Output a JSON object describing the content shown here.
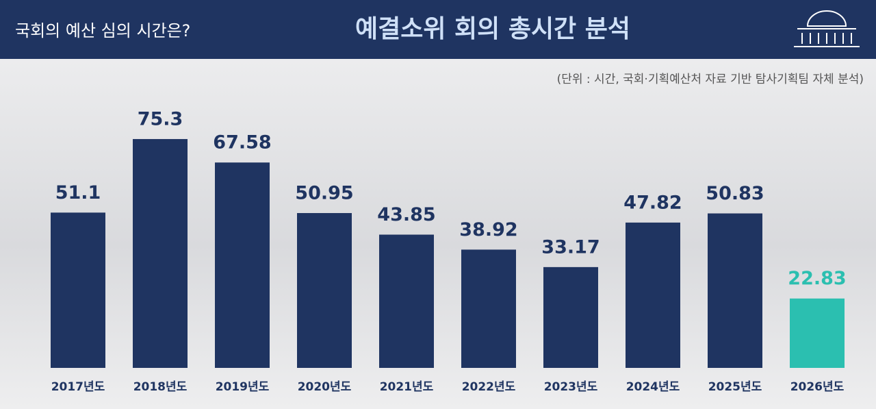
{
  "chart_data": {
    "type": "bar",
    "subtitle": "국회의 예산 심의 시간은?",
    "title": "예결소위 회의 총시간 분석",
    "note": "(단위 : 시간, 국회·기획예산처 자료 기반 탐사기획팀 자체 분석)",
    "categories": [
      "2017년도",
      "2018년도",
      "2019년도",
      "2020년도",
      "2021년도",
      "2022년도",
      "2023년도",
      "2024년도",
      "2025년도",
      "2026년도"
    ],
    "values": [
      51.1,
      75.3,
      67.58,
      50.95,
      43.85,
      38.92,
      33.17,
      47.82,
      50.83,
      22.83
    ],
    "colors": [
      "#1f3461",
      "#1f3461",
      "#1f3461",
      "#1f3461",
      "#1f3461",
      "#1f3461",
      "#1f3461",
      "#1f3461",
      "#1f3461",
      "#2bbfb0"
    ]
  }
}
